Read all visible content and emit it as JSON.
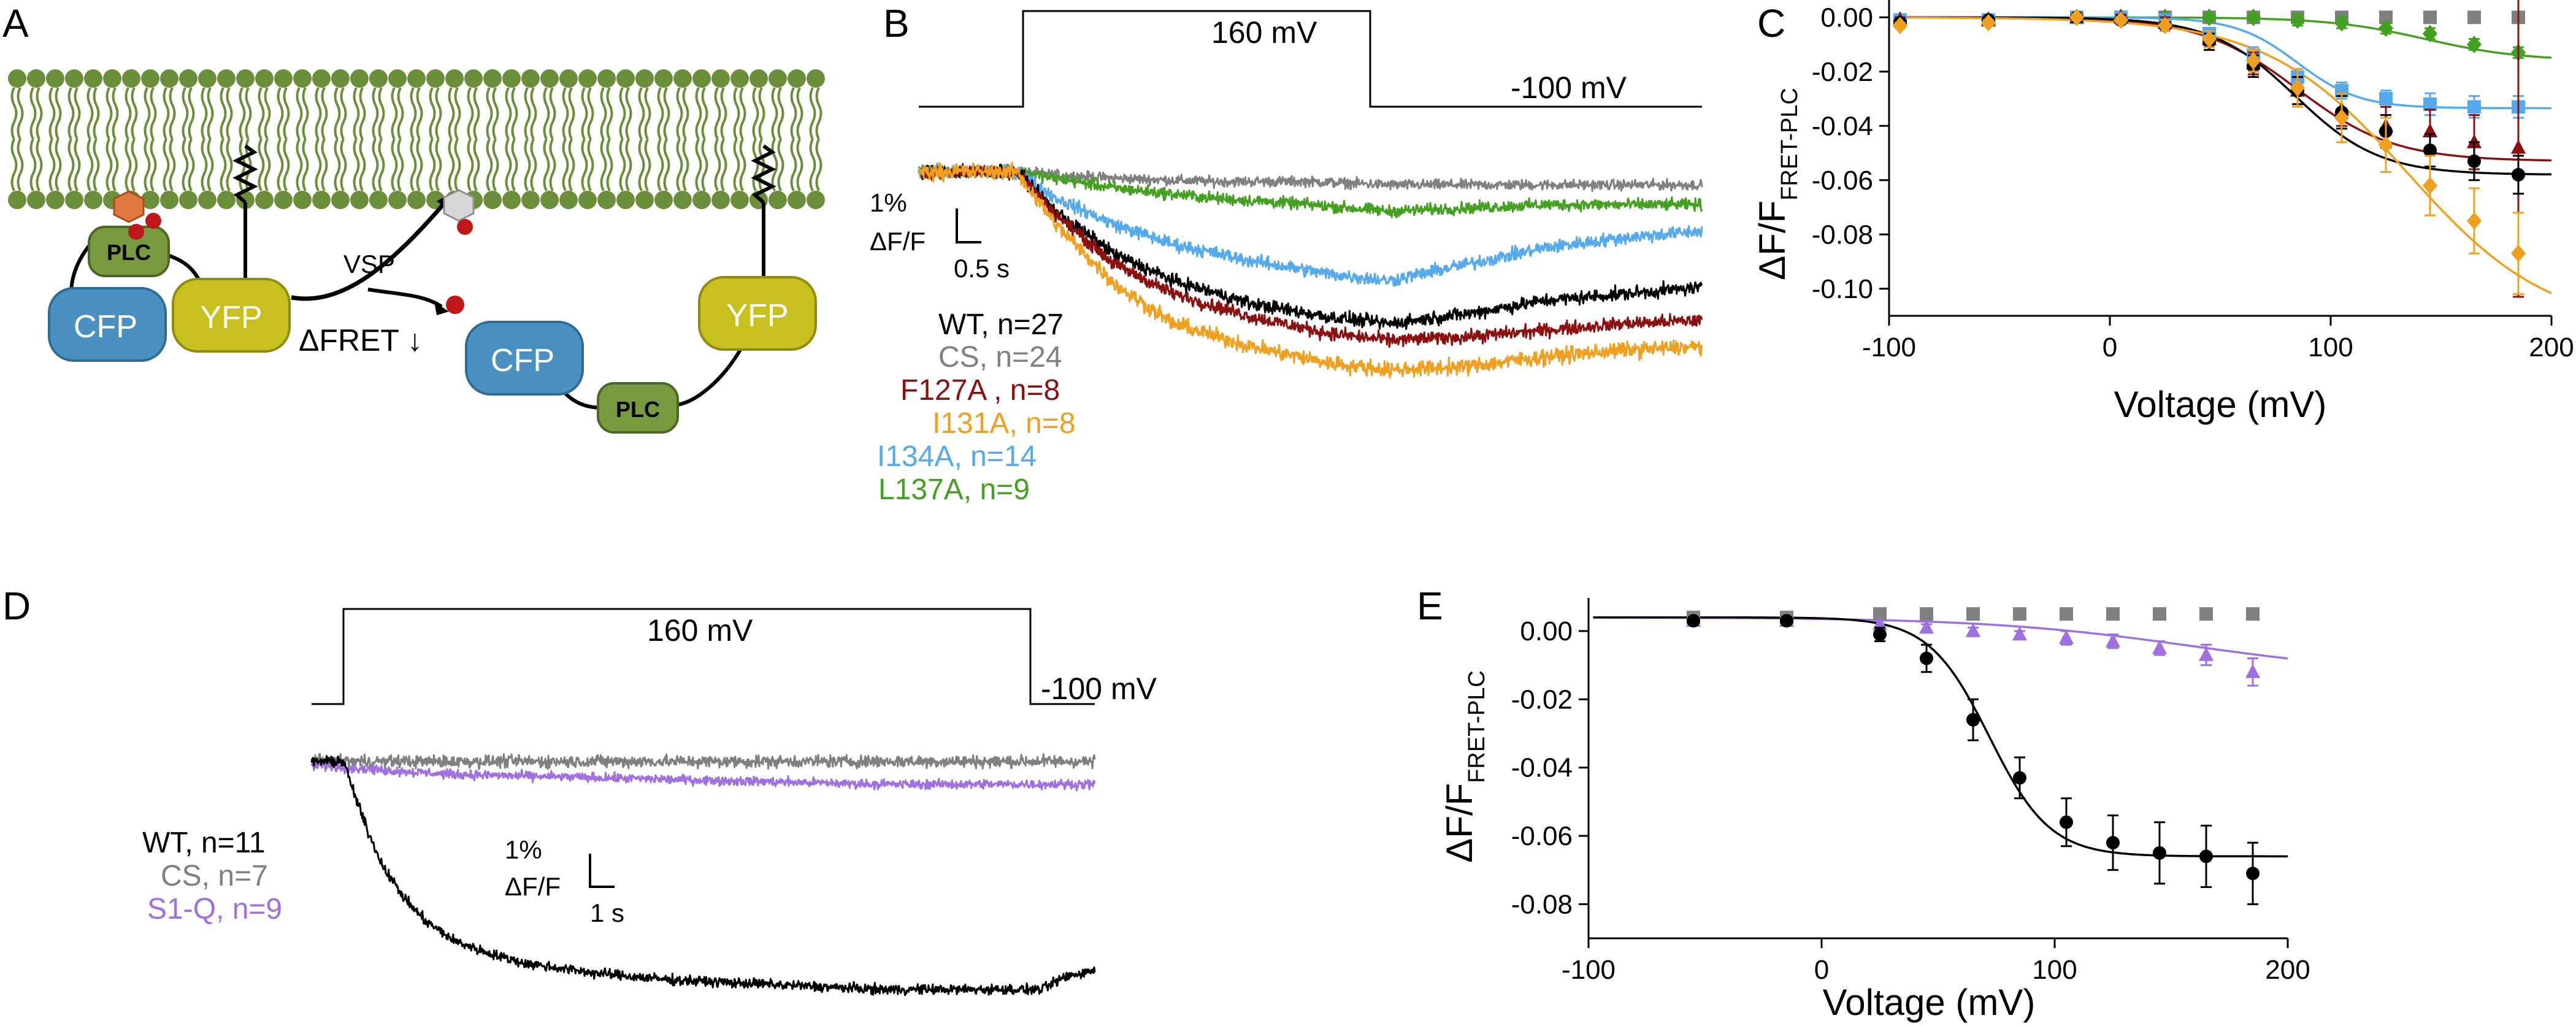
{
  "panel_letters": {
    "a": "A",
    "b": "B",
    "c": "C",
    "d": "D",
    "e": "E"
  },
  "colors": {
    "wt": "#000000",
    "cs": "#808080",
    "f127a": "#8B1010",
    "i131a": "#F0A020",
    "i134a": "#55AAEE",
    "l137a": "#44A020",
    "s1q": "#A070E0",
    "membrane": "#6B8E3A",
    "cfp": "#4A90C0",
    "yfp": "#C8C020",
    "plc": "#7A9A40",
    "pip": "#E07840",
    "phosphate": "#C01818"
  },
  "schematic": {
    "plc_label": "PLC",
    "cfp_label": "CFP",
    "yfp_label": "YFP",
    "vsp_label": "VSP",
    "fret_label": "ΔFRET ↓"
  },
  "panel_b": {
    "step_label": "160 mV",
    "hold_label": "-100 mV",
    "scale_y": "1%",
    "scale_y_unit": "ΔF/F",
    "scale_x": "0.5 s",
    "legend": [
      {
        "text": "WT, n=27",
        "color_key": "wt"
      },
      {
        "text": "CS, n=24",
        "color_key": "cs"
      },
      {
        "text": "F127A , n=8",
        "color_key": "f127a"
      },
      {
        "text": "I131A, n=8",
        "color_key": "i131a"
      },
      {
        "text": "I134A, n=14",
        "color_key": "i134a"
      },
      {
        "text": "L137A, n=9",
        "color_key": "l137a"
      }
    ]
  },
  "panel_d": {
    "step_label": "160 mV",
    "hold_label": "-100 mV",
    "scale_y": "1%",
    "scale_y_unit": "ΔF/F",
    "scale_x": "1 s",
    "legend": [
      {
        "text": "WT, n=11",
        "color_key": "wt"
      },
      {
        "text": "CS, n=7",
        "color_key": "cs"
      },
      {
        "text": "S1-Q, n=9",
        "color_key": "s1q"
      }
    ]
  },
  "chart_data": [
    {
      "id": "C",
      "type": "scatter",
      "xlabel": "Voltage (mV)",
      "ylabel": "ΔF/F",
      "ylabel_sub": "FRET-PLC",
      "xlim": [
        -100,
        200
      ],
      "ylim": [
        -0.11,
        0.003
      ],
      "xticks": [
        -100,
        0,
        100,
        200
      ],
      "xtick_labels": [
        "-100",
        "0",
        "100",
        "200"
      ],
      "yticks": [
        0,
        -0.02,
        -0.04,
        -0.06,
        -0.08,
        -0.1
      ],
      "ytick_labels": [
        "0.00",
        "-0.02",
        "-0.04",
        "-0.06",
        "-0.08",
        "-0.10"
      ],
      "series": [
        {
          "name": "CS",
          "color_key": "cs",
          "marker": "square",
          "fit": null,
          "x": [
            -95,
            -55,
            -15,
            5,
            25,
            45,
            65,
            85,
            105,
            125,
            145,
            165,
            185
          ],
          "y": [
            -0.001,
            -0.001,
            0,
            0,
            0,
            0,
            0,
            0,
            0,
            0,
            0,
            0,
            0
          ],
          "err": [
            0.001,
            0.001,
            0.001,
            0.001,
            0.001,
            0.001,
            0.001,
            0.001,
            0.001,
            0.001,
            0.001,
            0.001,
            0.001
          ]
        },
        {
          "name": "L137A",
          "color_key": "l137a",
          "marker": "diamond",
          "fit": {
            "top": 0,
            "amp": -0.016,
            "vh": 143,
            "k": 22
          },
          "x": [
            -95,
            -55,
            -15,
            5,
            25,
            45,
            65,
            85,
            105,
            125,
            145,
            165,
            185
          ],
          "y": [
            -0.001,
            -0.001,
            0,
            0,
            0,
            0,
            0,
            -0.001,
            -0.002,
            -0.004,
            -0.006,
            -0.01,
            -0.013
          ],
          "err": [
            0.001,
            0.001,
            0.001,
            0.001,
            0.001,
            0.001,
            0.001,
            0.002,
            0.002,
            0.002,
            0.002,
            0.002,
            0.002
          ]
        },
        {
          "name": "I134A",
          "color_key": "i134a",
          "marker": "square",
          "fit": {
            "top": 0,
            "amp": -0.0335,
            "vh": 85,
            "k": 14
          },
          "x": [
            -95,
            -55,
            -15,
            5,
            25,
            45,
            65,
            85,
            105,
            125,
            145,
            165,
            185
          ],
          "y": [
            -0.001,
            -0.001,
            0,
            0,
            -0.001,
            -0.006,
            -0.014,
            -0.022,
            -0.027,
            -0.03,
            -0.032,
            -0.033,
            -0.033
          ],
          "err": [
            0.001,
            0.001,
            0.001,
            0.001,
            0.001,
            0.002,
            0.003,
            0.003,
            0.003,
            0.003,
            0.004,
            0.004,
            0.004
          ]
        },
        {
          "name": "F127A",
          "color_key": "f127a",
          "marker": "triangle",
          "fit": {
            "top": 0,
            "amp": -0.053,
            "vh": 85,
            "k": 22
          },
          "x": [
            -95,
            -55,
            -15,
            5,
            25,
            45,
            65,
            85,
            105,
            125,
            145,
            165,
            185
          ],
          "y": [
            -0.001,
            -0.001,
            0,
            0,
            -0.002,
            -0.008,
            -0.017,
            -0.027,
            -0.034,
            -0.04,
            -0.042,
            -0.046,
            -0.048
          ],
          "err": [
            0.001,
            0.001,
            0.001,
            0.001,
            0.002,
            0.003,
            0.004,
            0.005,
            0.006,
            0.007,
            0.008,
            0.01,
            0.055
          ]
        },
        {
          "name": "WT",
          "color_key": "wt",
          "marker": "circle",
          "fit": {
            "top": 0,
            "amp": -0.058,
            "vh": 84,
            "k": 19
          },
          "x": [
            -95,
            -55,
            -15,
            5,
            25,
            45,
            65,
            85,
            105,
            125,
            145,
            165,
            185
          ],
          "y": [
            -0.002,
            -0.001,
            0,
            -0.001,
            -0.003,
            -0.009,
            -0.018,
            -0.027,
            -0.035,
            -0.042,
            -0.049,
            -0.053,
            -0.058
          ],
          "err": [
            0.001,
            0.001,
            0.001,
            0.001,
            0.002,
            0.003,
            0.004,
            0.005,
            0.006,
            0.006,
            0.006,
            0.007,
            0.007
          ]
        },
        {
          "name": "I131A",
          "color_key": "i131a",
          "marker": "diamond",
          "fit": {
            "top": 0,
            "amp": -0.115,
            "vh": 135,
            "k": 32
          },
          "x": [
            -95,
            -55,
            -15,
            5,
            25,
            45,
            65,
            85,
            105,
            125,
            145,
            165,
            185
          ],
          "y": [
            -0.003,
            -0.002,
            0,
            -0.001,
            -0.003,
            -0.008,
            -0.016,
            -0.026,
            -0.037,
            -0.047,
            -0.062,
            -0.075,
            -0.087
          ],
          "err": [
            0.001,
            0.001,
            0.001,
            0.001,
            0.002,
            0.003,
            0.004,
            0.007,
            0.009,
            0.01,
            0.011,
            0.012,
            0.015
          ]
        }
      ]
    },
    {
      "id": "E",
      "type": "scatter",
      "xlabel": "Voltage (mV)",
      "ylabel": "ΔF/F",
      "ylabel_sub": "FRET-PLC",
      "xlim": [
        -100,
        200
      ],
      "ylim": [
        -0.09,
        0.007
      ],
      "xticks": [
        -100,
        0,
        100,
        200
      ],
      "xtick_labels": [
        "-100",
        "0",
        "100",
        "200"
      ],
      "yticks": [
        0,
        -0.02,
        -0.04,
        -0.06,
        -0.08
      ],
      "ytick_labels": [
        "0.00",
        "-0.02",
        "-0.04",
        "-0.06",
        "-0.08"
      ],
      "series": [
        {
          "name": "CS",
          "color_key": "cs",
          "marker": "square",
          "fit": null,
          "x": [
            -55,
            -15,
            25,
            45,
            65,
            85,
            105,
            125,
            145,
            165,
            185
          ],
          "y": [
            0.004,
            0.004,
            0.005,
            0.005,
            0.005,
            0.005,
            0.005,
            0.005,
            0.005,
            0.005,
            0.005
          ],
          "err": [
            0.001,
            0.001,
            0.001,
            0.001,
            0.001,
            0.001,
            0.001,
            0.001,
            0.001,
            0.001,
            0.001
          ]
        },
        {
          "name": "S1-Q",
          "color_key": "s1q",
          "marker": "triangle",
          "fit": {
            "top": 0.004,
            "amp": -0.017,
            "vh": 160,
            "k": 45
          },
          "x": [
            -55,
            -15,
            25,
            45,
            65,
            85,
            105,
            125,
            145,
            165,
            185
          ],
          "y": [
            0.003,
            0.003,
            0.002,
            0.001,
            0,
            -0.001,
            -0.002,
            -0.003,
            -0.005,
            -0.007,
            -0.012
          ],
          "err": [
            0.001,
            0.001,
            0.001,
            0.001,
            0.001,
            0.001,
            0.002,
            0.002,
            0.002,
            0.003,
            0.004
          ]
        },
        {
          "name": "WT",
          "color_key": "wt",
          "marker": "circle",
          "fit": {
            "top": 0.004,
            "amp": -0.07,
            "vh": 72,
            "k": 13
          },
          "x": [
            -55,
            -15,
            25,
            45,
            65,
            85,
            105,
            125,
            145,
            165,
            185
          ],
          "y": [
            0.003,
            0.003,
            -0.001,
            -0.008,
            -0.026,
            -0.043,
            -0.056,
            -0.062,
            -0.065,
            -0.066,
            -0.071
          ],
          "err": [
            0.001,
            0.001,
            0.002,
            0.004,
            0.006,
            0.006,
            0.007,
            0.008,
            0.009,
            0.009,
            0.009
          ]
        }
      ]
    },
    {
      "id": "B",
      "type": "line",
      "xlim": [
        0,
        4
      ],
      "ylim": [
        -0.07,
        0.01
      ],
      "step": {
        "on": 0.5,
        "off": 2.4
      },
      "series": [
        {
          "name": "CS",
          "color_key": "cs",
          "noise": 0.0013,
          "x": [
            0,
            0.5,
            0.7,
            1.0,
            1.5,
            2.0,
            2.4,
            2.8,
            3.2,
            3.6,
            4.0
          ],
          "y": [
            0,
            0,
            -0.001,
            -0.002,
            -0.003,
            -0.003,
            -0.004,
            -0.004,
            -0.004,
            -0.004,
            -0.004
          ]
        },
        {
          "name": "L137A",
          "color_key": "l137a",
          "noise": 0.0015,
          "x": [
            0,
            0.5,
            0.7,
            1.0,
            1.5,
            2.0,
            2.4,
            2.8,
            3.2,
            3.6,
            4.0
          ],
          "y": [
            0,
            0,
            -0.002,
            -0.005,
            -0.008,
            -0.01,
            -0.012,
            -0.011,
            -0.01,
            -0.01,
            -0.01
          ]
        },
        {
          "name": "I134A",
          "color_key": "i134a",
          "noise": 0.0017,
          "x": [
            0,
            0.5,
            0.7,
            1.0,
            1.3,
            1.7,
            2.1,
            2.4,
            2.8,
            3.2,
            3.6,
            4.0
          ],
          "y": [
            0,
            0,
            -0.008,
            -0.016,
            -0.022,
            -0.027,
            -0.031,
            -0.033,
            -0.028,
            -0.023,
            -0.02,
            -0.018
          ]
        },
        {
          "name": "WT",
          "color_key": "wt",
          "noise": 0.0017,
          "x": [
            0,
            0.5,
            0.7,
            1.0,
            1.3,
            1.7,
            2.1,
            2.4,
            2.8,
            3.2,
            3.6,
            4.0
          ],
          "y": [
            0,
            0,
            -0.012,
            -0.025,
            -0.033,
            -0.04,
            -0.044,
            -0.046,
            -0.043,
            -0.039,
            -0.037,
            -0.035
          ]
        },
        {
          "name": "F127A",
          "color_key": "f127a",
          "noise": 0.0017,
          "x": [
            0,
            0.5,
            0.7,
            1.0,
            1.3,
            1.7,
            2.1,
            2.4,
            2.8,
            3.2,
            3.6,
            4.0
          ],
          "y": [
            0,
            0,
            -0.013,
            -0.028,
            -0.037,
            -0.044,
            -0.049,
            -0.051,
            -0.05,
            -0.048,
            -0.046,
            -0.045
          ]
        },
        {
          "name": "I131A",
          "color_key": "i131a",
          "noise": 0.002,
          "x": [
            0,
            0.5,
            0.7,
            1.0,
            1.3,
            1.7,
            2.1,
            2.4,
            2.8,
            3.2,
            3.6,
            4.0
          ],
          "y": [
            0,
            0,
            -0.016,
            -0.034,
            -0.046,
            -0.053,
            -0.058,
            -0.06,
            -0.059,
            -0.056,
            -0.054,
            -0.053
          ]
        }
      ]
    },
    {
      "id": "D",
      "type": "line",
      "xlim": [
        0,
        11
      ],
      "ylim": [
        -0.075,
        0.005
      ],
      "step": {
        "on": 0.45,
        "off": 10.25
      },
      "series": [
        {
          "name": "CS",
          "color_key": "cs",
          "noise": 0.0016,
          "x": [
            0,
            2,
            4,
            6,
            8,
            10,
            11
          ],
          "y": [
            0,
            0,
            0,
            0,
            0,
            0,
            0
          ]
        },
        {
          "name": "S1-Q",
          "color_key": "s1q",
          "noise": 0.0012,
          "x": [
            0,
            0.5,
            2,
            4,
            6,
            8,
            10,
            11
          ],
          "y": [
            -0.001,
            -0.002,
            -0.004,
            -0.005,
            -0.006,
            -0.007,
            -0.007,
            -0.007
          ]
        },
        {
          "name": "WT",
          "color_key": "wt",
          "noise": 0.0013,
          "x": [
            0,
            0.45,
            0.6,
            0.8,
            1.0,
            1.3,
            1.6,
            2.0,
            2.5,
            3.0,
            4.0,
            5.0,
            6.0,
            7.0,
            8.0,
            9.0,
            10.0,
            10.25,
            10.6,
            11.0
          ],
          "y": [
            0,
            0,
            -0.01,
            -0.022,
            -0.032,
            -0.042,
            -0.049,
            -0.055,
            -0.059,
            -0.062,
            -0.065,
            -0.067,
            -0.068,
            -0.069,
            -0.07,
            -0.07,
            -0.07,
            -0.07,
            -0.066,
            -0.064
          ]
        }
      ]
    }
  ]
}
